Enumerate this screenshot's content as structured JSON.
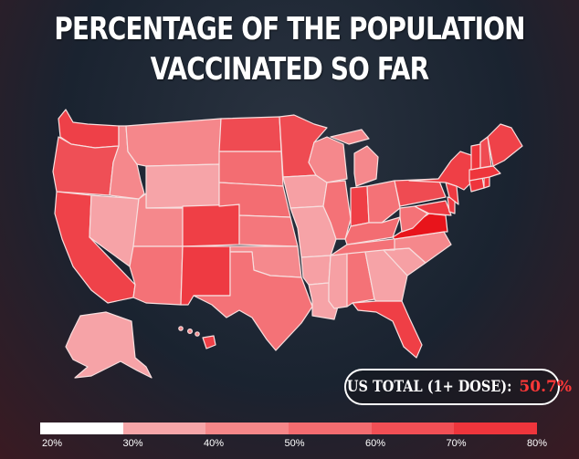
{
  "title": {
    "line1": "PERCENTAGE OF THE POPULATION",
    "line2": "VACCINATED SO FAR"
  },
  "total": {
    "label": "US TOTAL (1+ DOSE):",
    "value": "50.7%"
  },
  "legend": {
    "ticks": [
      "20%",
      "30%",
      "40%",
      "50%",
      "60%",
      "70%",
      "80%"
    ],
    "colors": [
      "#ffffff",
      "#f6a6a9",
      "#f58789",
      "#f36c70",
      "#f14f55",
      "#ee353c",
      "#ec0d13"
    ]
  },
  "palette": {
    "border": "#f3dada",
    "ocean_text": "#ffffff"
  }
}
